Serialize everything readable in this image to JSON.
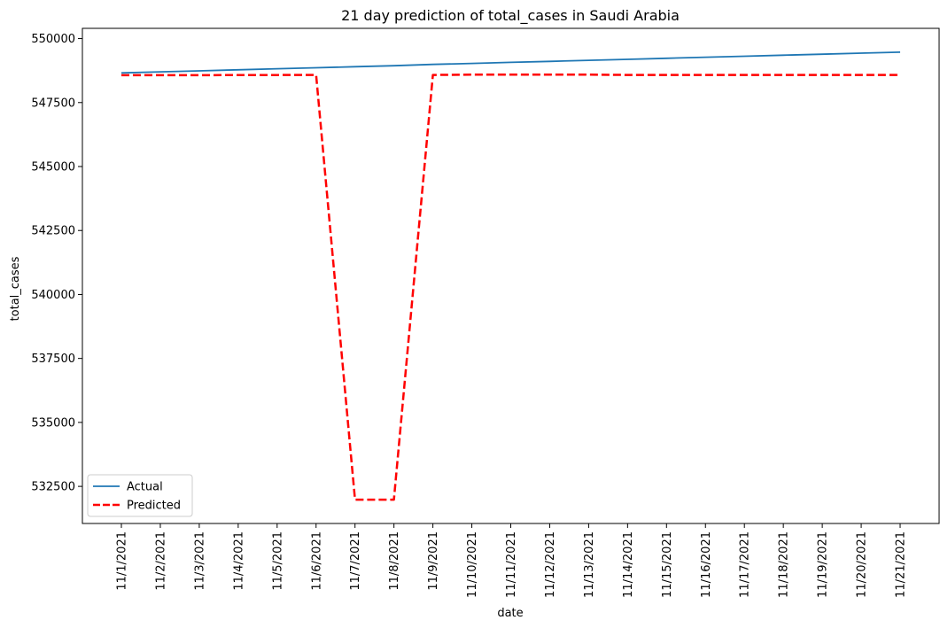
{
  "chart_data": {
    "type": "line",
    "title": "21 day prediction of total_cases in Saudi Arabia",
    "xlabel": "date",
    "ylabel": "total_cases",
    "categories": [
      "11/1/2021",
      "11/2/2021",
      "11/3/2021",
      "11/4/2021",
      "11/5/2021",
      "11/6/2021",
      "11/7/2021",
      "11/8/2021",
      "11/9/2021",
      "11/10/2021",
      "11/11/2021",
      "11/12/2021",
      "11/13/2021",
      "11/14/2021",
      "11/15/2021",
      "11/16/2021",
      "11/17/2021",
      "11/18/2021",
      "11/19/2021",
      "11/20/2021",
      "11/21/2021"
    ],
    "yticks": [
      532500,
      535000,
      537500,
      540000,
      542500,
      545000,
      547500,
      550000
    ],
    "ylim": [
      531050,
      550400
    ],
    "legend_position": "lower-left",
    "grid": false,
    "series": [
      {
        "name": "Actual",
        "color": "#1f77b4",
        "style": "solid",
        "values": [
          548660,
          548700,
          548740,
          548780,
          548820,
          548860,
          548900,
          548940,
          548990,
          549030,
          549070,
          549110,
          549150,
          549190,
          549230,
          549270,
          549310,
          549350,
          549390,
          549430,
          549470
        ]
      },
      {
        "name": "Predicted",
        "color": "#ff0000",
        "style": "dashed",
        "values": [
          548570,
          548570,
          548570,
          548575,
          548575,
          548580,
          531980,
          531980,
          548580,
          548590,
          548590,
          548590,
          548590,
          548580,
          548580,
          548580,
          548580,
          548580,
          548580,
          548580,
          548580
        ]
      }
    ]
  }
}
